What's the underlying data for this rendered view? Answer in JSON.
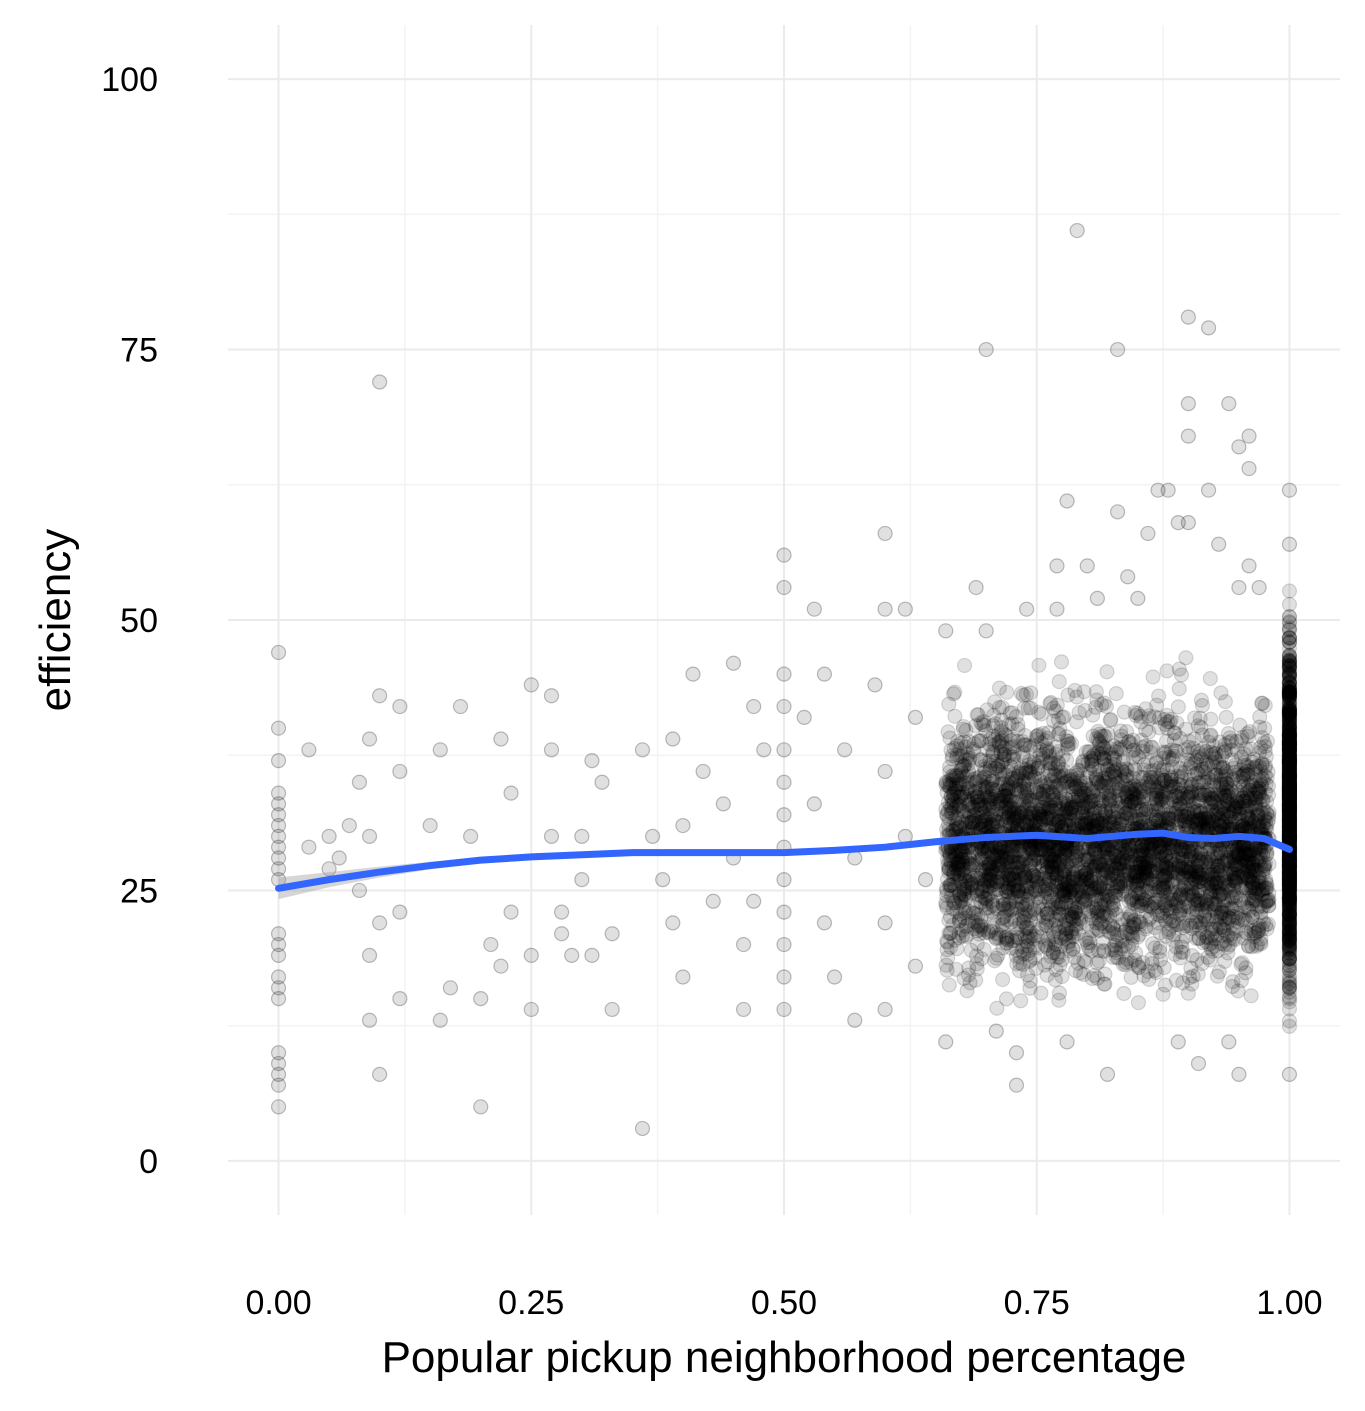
{
  "chart_data": {
    "type": "scatter",
    "title": "",
    "xlabel": "Popular pickup neighborhood percentage",
    "ylabel": "efficiency",
    "xlim": [
      -0.05,
      1.05
    ],
    "ylim": [
      -5,
      105
    ],
    "x_ticks": [
      0,
      0.25,
      0.5,
      0.75,
      1.0
    ],
    "x_tick_labels": [
      "0.00",
      "0.25",
      "0.50",
      "0.75",
      "1.00"
    ],
    "y_ticks": [
      0,
      25,
      50,
      75,
      100
    ],
    "y_tick_labels": [
      "0",
      "25",
      "50",
      "75",
      "100"
    ],
    "grid": true,
    "legend": "none",
    "colors": {
      "points": "#000000",
      "smooth_line": "#3366FF",
      "ribbon": "#999999",
      "grid": "#ebebeb"
    },
    "series": [
      {
        "kind": "points",
        "opacity": 0.12,
        "dense_bands": [
          {
            "x_from": 0.66,
            "x_to": 0.98,
            "y_from": 12,
            "y_to": 47
          },
          {
            "x_from": 1.0,
            "x_to": 1.0,
            "y_from": 9,
            "y_to": 56
          }
        ],
        "points": [
          [
            0,
            47
          ],
          [
            0,
            40
          ],
          [
            0,
            37
          ],
          [
            0,
            34
          ],
          [
            0,
            33
          ],
          [
            0,
            32
          ],
          [
            0,
            31
          ],
          [
            0,
            30
          ],
          [
            0,
            29
          ],
          [
            0,
            28
          ],
          [
            0,
            27
          ],
          [
            0,
            26
          ],
          [
            0,
            21
          ],
          [
            0,
            20
          ],
          [
            0,
            19
          ],
          [
            0,
            17
          ],
          [
            0,
            16
          ],
          [
            0,
            15
          ],
          [
            0,
            10
          ],
          [
            0,
            9
          ],
          [
            0,
            8
          ],
          [
            0,
            7
          ],
          [
            0,
            5
          ],
          [
            0.03,
            38
          ],
          [
            0.03,
            29
          ],
          [
            0.05,
            30
          ],
          [
            0.05,
            27
          ],
          [
            0.06,
            28
          ],
          [
            0.07,
            31
          ],
          [
            0.08,
            35
          ],
          [
            0.08,
            25
          ],
          [
            0.09,
            39
          ],
          [
            0.09,
            30
          ],
          [
            0.09,
            19
          ],
          [
            0.09,
            13
          ],
          [
            0.1,
            72
          ],
          [
            0.1,
            43
          ],
          [
            0.1,
            22
          ],
          [
            0.1,
            8
          ],
          [
            0.12,
            42
          ],
          [
            0.12,
            36
          ],
          [
            0.12,
            23
          ],
          [
            0.12,
            15
          ],
          [
            0.15,
            31
          ],
          [
            0.16,
            38
          ],
          [
            0.16,
            13
          ],
          [
            0.17,
            16
          ],
          [
            0.18,
            42
          ],
          [
            0.19,
            30
          ],
          [
            0.2,
            5
          ],
          [
            0.2,
            15
          ],
          [
            0.21,
            20
          ],
          [
            0.22,
            18
          ],
          [
            0.22,
            39
          ],
          [
            0.23,
            34
          ],
          [
            0.23,
            23
          ],
          [
            0.25,
            14
          ],
          [
            0.25,
            19
          ],
          [
            0.25,
            44
          ],
          [
            0.27,
            43
          ],
          [
            0.27,
            38
          ],
          [
            0.27,
            30
          ],
          [
            0.28,
            21
          ],
          [
            0.28,
            23
          ],
          [
            0.29,
            19
          ],
          [
            0.3,
            30
          ],
          [
            0.3,
            26
          ],
          [
            0.31,
            37
          ],
          [
            0.31,
            19
          ],
          [
            0.32,
            35
          ],
          [
            0.33,
            14
          ],
          [
            0.33,
            21
          ],
          [
            0.36,
            3
          ],
          [
            0.36,
            38
          ],
          [
            0.37,
            30
          ],
          [
            0.38,
            26
          ],
          [
            0.39,
            22
          ],
          [
            0.39,
            39
          ],
          [
            0.4,
            31
          ],
          [
            0.4,
            17
          ],
          [
            0.41,
            45
          ],
          [
            0.42,
            36
          ],
          [
            0.43,
            24
          ],
          [
            0.44,
            33
          ],
          [
            0.45,
            46
          ],
          [
            0.45,
            28
          ],
          [
            0.46,
            14
          ],
          [
            0.46,
            20
          ],
          [
            0.47,
            42
          ],
          [
            0.47,
            24
          ],
          [
            0.48,
            38
          ],
          [
            0.5,
            56
          ],
          [
            0.5,
            53
          ],
          [
            0.5,
            45
          ],
          [
            0.5,
            42
          ],
          [
            0.5,
            38
          ],
          [
            0.5,
            35
          ],
          [
            0.5,
            32
          ],
          [
            0.5,
            29
          ],
          [
            0.5,
            26
          ],
          [
            0.5,
            23
          ],
          [
            0.5,
            20
          ],
          [
            0.5,
            17
          ],
          [
            0.5,
            14
          ],
          [
            0.52,
            41
          ],
          [
            0.53,
            51
          ],
          [
            0.53,
            33
          ],
          [
            0.54,
            45
          ],
          [
            0.54,
            22
          ],
          [
            0.55,
            17
          ],
          [
            0.56,
            38
          ],
          [
            0.57,
            28
          ],
          [
            0.57,
            13
          ],
          [
            0.59,
            44
          ],
          [
            0.6,
            58
          ],
          [
            0.6,
            51
          ],
          [
            0.6,
            36
          ],
          [
            0.6,
            22
          ],
          [
            0.6,
            14
          ],
          [
            0.62,
            51
          ],
          [
            0.62,
            30
          ],
          [
            0.63,
            41
          ],
          [
            0.63,
            18
          ],
          [
            0.64,
            26
          ],
          [
            0.66,
            49
          ],
          [
            0.66,
            11
          ],
          [
            0.69,
            53
          ],
          [
            0.7,
            75
          ],
          [
            0.7,
            49
          ],
          [
            0.71,
            12
          ],
          [
            0.73,
            10
          ],
          [
            0.73,
            7
          ],
          [
            0.74,
            51
          ],
          [
            0.77,
            55
          ],
          [
            0.77,
            51
          ],
          [
            0.78,
            61
          ],
          [
            0.78,
            11
          ],
          [
            0.79,
            86
          ],
          [
            0.8,
            55
          ],
          [
            0.81,
            52
          ],
          [
            0.82,
            8
          ],
          [
            0.83,
            60
          ],
          [
            0.83,
            75
          ],
          [
            0.84,
            54
          ],
          [
            0.85,
            52
          ],
          [
            0.86,
            58
          ],
          [
            0.87,
            62
          ],
          [
            0.88,
            62
          ],
          [
            0.89,
            59
          ],
          [
            0.89,
            11
          ],
          [
            0.9,
            78
          ],
          [
            0.9,
            70
          ],
          [
            0.9,
            67
          ],
          [
            0.9,
            59
          ],
          [
            0.91,
            9
          ],
          [
            0.92,
            77
          ],
          [
            0.92,
            62
          ],
          [
            0.93,
            57
          ],
          [
            0.94,
            70
          ],
          [
            0.95,
            66
          ],
          [
            0.95,
            53
          ],
          [
            0.96,
            67
          ],
          [
            0.96,
            64
          ],
          [
            0.96,
            55
          ],
          [
            0.97,
            53
          ],
          [
            0.95,
            8
          ],
          [
            0.94,
            11
          ],
          [
            1.0,
            62
          ],
          [
            1.0,
            57
          ],
          [
            1.0,
            8
          ]
        ]
      },
      {
        "kind": "smooth",
        "x": [
          0,
          0.05,
          0.1,
          0.15,
          0.2,
          0.25,
          0.3,
          0.35,
          0.4,
          0.45,
          0.5,
          0.55,
          0.6,
          0.65,
          0.7,
          0.75,
          0.8,
          0.85,
          0.875,
          0.9,
          0.925,
          0.95,
          0.975,
          1.0
        ],
        "y": [
          25.2,
          26.0,
          26.7,
          27.3,
          27.8,
          28.1,
          28.3,
          28.5,
          28.5,
          28.5,
          28.5,
          28.7,
          29.0,
          29.5,
          29.9,
          30.1,
          29.8,
          30.2,
          30.3,
          29.9,
          29.8,
          30.0,
          29.8,
          28.8
        ],
        "ribbon_halfwidth": [
          1.0,
          0.7,
          0.5,
          0.35,
          0.3,
          0.3,
          0.25,
          0.2,
          0.2,
          0.2,
          0.15,
          0.12,
          0.1,
          0.1,
          0.1,
          0.1,
          0.1,
          0.1,
          0.1,
          0.1,
          0.1,
          0.12,
          0.15,
          0.25
        ]
      }
    ]
  }
}
